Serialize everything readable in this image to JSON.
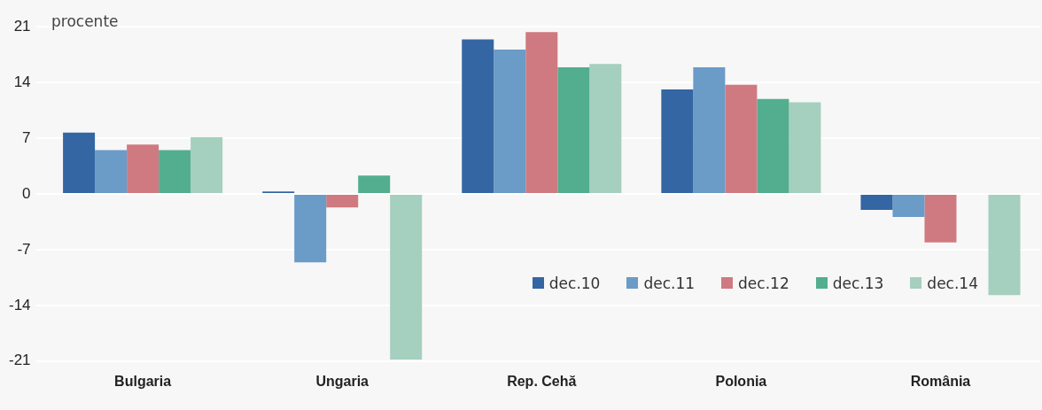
{
  "chart_data": {
    "type": "bar",
    "ylabel": "procente",
    "categories": [
      "Bulgaria",
      "Ungaria",
      "Rep. Cehă",
      "Polonia",
      "România"
    ],
    "series": [
      {
        "name": "dec.10",
        "color": "#3366a3",
        "values": [
          7.7,
          0.3,
          19.4,
          13.1,
          -2.0
        ]
      },
      {
        "name": "dec.11",
        "color": "#6b9bc7",
        "values": [
          5.5,
          -8.6,
          18.1,
          15.9,
          -2.9
        ]
      },
      {
        "name": "dec.12",
        "color": "#cf7a80",
        "values": [
          6.2,
          -1.7,
          20.3,
          13.7,
          -6.1
        ]
      },
      {
        "name": "dec.13",
        "color": "#52ae8f",
        "values": [
          5.5,
          2.3,
          15.9,
          11.9,
          null
        ]
      },
      {
        "name": "dec.14",
        "color": "#a5cfbe",
        "values": [
          7.1,
          -20.8,
          16.3,
          11.5,
          -12.7
        ]
      }
    ],
    "ylim": [
      -21,
      21
    ],
    "yticks": [
      -21,
      -14,
      -7,
      0,
      7,
      14,
      21
    ],
    "grid": "y",
    "legend": "bottom right"
  }
}
